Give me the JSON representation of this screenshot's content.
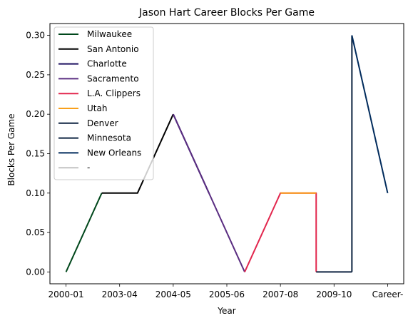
{
  "chart_data": {
    "type": "line",
    "title": "Jason Hart  Career Blocks Per Game",
    "xlabel": "Year",
    "ylabel": "Blocks Per Game",
    "x_tick_labels": [
      "2000-01",
      "2003-04",
      "2004-05",
      "2005-06",
      "2007-08",
      "2009-10",
      "Career-"
    ],
    "x_tick_positions": [
      0,
      1.5,
      3,
      4.5,
      6,
      7.5,
      9
    ],
    "y_ticks": [
      0.0,
      0.05,
      0.1,
      0.15,
      0.2,
      0.25,
      0.3
    ],
    "y_tick_labels": [
      "0.00",
      "0.05",
      "0.10",
      "0.15",
      "0.20",
      "0.25",
      "0.30"
    ],
    "xlim": [
      -0.45,
      9.45
    ],
    "ylim": [
      -0.015,
      0.315
    ],
    "legend_position": "top-left",
    "series": [
      {
        "name": "Milwaukee",
        "color": "#00471b",
        "points": [
          [
            0,
            0.0
          ],
          [
            1,
            0.1
          ]
        ]
      },
      {
        "name": "San Antonio",
        "color": "#000000",
        "points": [
          [
            1,
            0.1
          ],
          [
            2,
            0.1
          ],
          [
            3,
            0.2
          ]
        ]
      },
      {
        "name": "Charlotte",
        "color": "#1d1160",
        "points": [
          [
            3,
            0.2
          ],
          [
            4,
            0.1
          ]
        ]
      },
      {
        "name": "Sacramento",
        "color": "#5a2d81",
        "points": [
          [
            3,
            0.2
          ],
          [
            5,
            0.0
          ]
        ]
      },
      {
        "name": "L.A. Clippers",
        "color": "#e2264d",
        "points": [
          [
            5,
            0.0
          ],
          [
            6,
            0.1
          ],
          [
            7,
            0.1
          ],
          [
            7,
            0.0
          ]
        ]
      },
      {
        "name": "Utah",
        "color": "#f9a01b",
        "points": [
          [
            6,
            0.1
          ],
          [
            7,
            0.1
          ]
        ]
      },
      {
        "name": "Denver",
        "color": "#0e2240",
        "points": [
          [
            7,
            0.0
          ],
          [
            8,
            0.0
          ]
        ]
      },
      {
        "name": "Minnesota",
        "color": "#0c2340",
        "points": [
          [
            8,
            0.0
          ],
          [
            8,
            0.3
          ]
        ]
      },
      {
        "name": "New Orleans",
        "color": "#002b5c",
        "points": [
          [
            8,
            0.3
          ],
          [
            9,
            0.1
          ]
        ]
      },
      {
        "name": "-",
        "color": "#c4c4c4",
        "points": []
      }
    ]
  }
}
